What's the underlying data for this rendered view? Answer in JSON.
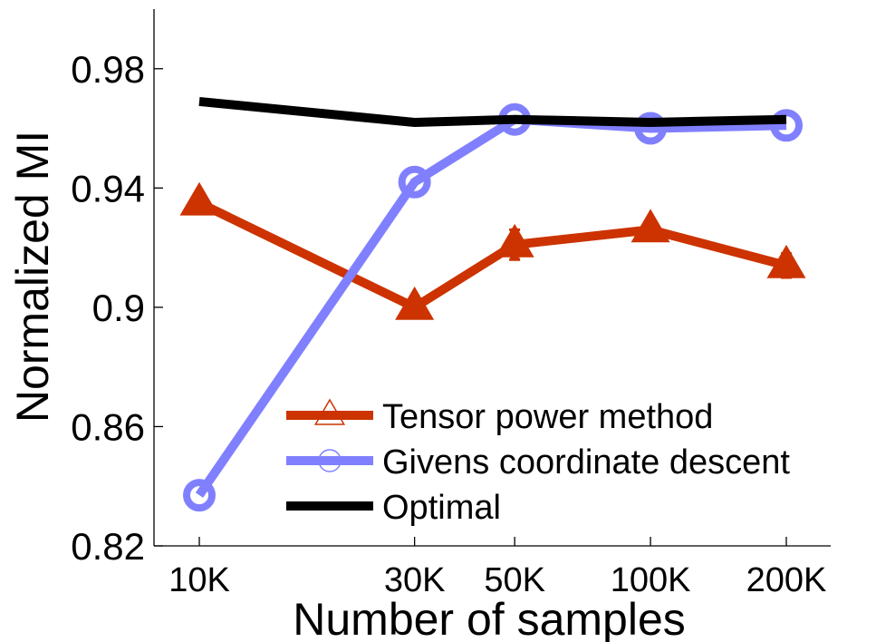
{
  "chart_data": {
    "type": "line",
    "xlabel": "Number of samples",
    "ylabel": "Normalized MI",
    "x_scale": "log",
    "x": [
      10000,
      30000,
      50000,
      100000,
      200000
    ],
    "x_tick_labels": [
      "10K",
      "30K",
      "50K",
      "100K",
      "200K"
    ],
    "ylim": [
      0.82,
      1.0
    ],
    "y_ticks": [
      0.82,
      0.86,
      0.9,
      0.94,
      0.98
    ],
    "y_tick_labels": [
      "0.82",
      "0.86",
      "0.9",
      "0.94",
      "0.98"
    ],
    "legend_position": "lower-right",
    "grid": false,
    "series": [
      {
        "name": "Tensor power method",
        "color": "#cc3300",
        "marker": "triangle",
        "values": [
          0.935,
          0.9,
          0.921,
          0.926,
          0.914
        ],
        "error": [
          0.0,
          0.002,
          0.005,
          0.002,
          0.004
        ]
      },
      {
        "name": "Givens coordinate descent",
        "color": "#8080ff",
        "marker": "circle",
        "values": [
          0.837,
          0.942,
          0.963,
          0.96,
          0.961
        ],
        "error": [
          0,
          0,
          0,
          0,
          0
        ]
      },
      {
        "name": "Optimal",
        "color": "#000000",
        "marker": "none",
        "values": [
          0.969,
          0.962,
          0.963,
          0.962,
          0.963
        ],
        "error": [
          0,
          0,
          0,
          0,
          0
        ]
      }
    ]
  }
}
